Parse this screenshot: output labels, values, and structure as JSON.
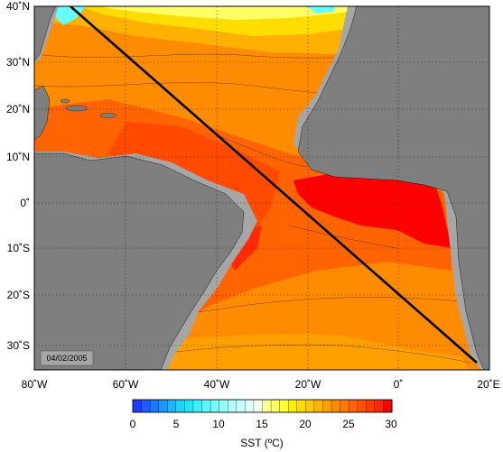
{
  "map": {
    "lat_labels": [
      "40˚N",
      "30˚N",
      "20˚N",
      "10˚N",
      "0˚",
      "10˚S",
      "20˚S",
      "30˚S"
    ],
    "lon_labels": [
      "80˚W",
      "60˚W",
      "40˚W",
      "20˚W",
      "0˚",
      "20˚E"
    ],
    "lon_range": [
      -80,
      20
    ],
    "lat_range": [
      -35,
      40
    ],
    "date_stamp": "04/02/2005",
    "section_line": {
      "from": {
        "lon": -72,
        "lat": 40
      },
      "to": {
        "lon": 18,
        "lat": -34
      }
    },
    "colors": {
      "land": "#7f7f7f",
      "shelf": "#a6a6a6",
      "sst_warmest": "#ff0000",
      "sst_warm": "#ff4a00",
      "sst_mid": "#ff8c00",
      "sst_mild": "#ffb000",
      "sst_cool": "#ffdd00",
      "sst_cold": "#ffff66",
      "sst_coldest": "#66ffff"
    }
  },
  "colorbar": {
    "ticks": [
      "0",
      "5",
      "10",
      "15",
      "20",
      "25",
      "30"
    ],
    "label": "SST (ºC)",
    "range": [
      0,
      30
    ],
    "colors": [
      "#1e3cff",
      "#1e5aff",
      "#1e78ff",
      "#1e96ff",
      "#1eb4ff",
      "#1ed2ff",
      "#1ee6ff",
      "#3cf0ff",
      "#5af5ff",
      "#78faff",
      "#96ffff",
      "#b4ffff",
      "#c8ffff",
      "#dcffff",
      "#f0fff0",
      "#ffff96",
      "#ffff64",
      "#ffff32",
      "#fff000",
      "#ffdc00",
      "#ffc800",
      "#ffb400",
      "#ffa000",
      "#ff8c00",
      "#ff7800",
      "#ff6400",
      "#ff5000",
      "#ff3c00",
      "#ff2800",
      "#ff0000"
    ]
  }
}
